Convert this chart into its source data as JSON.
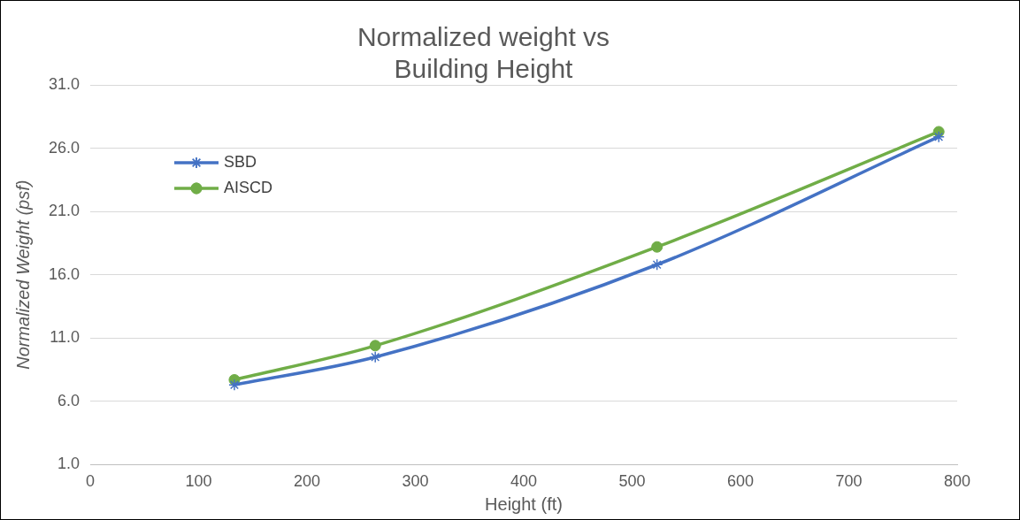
{
  "chart_data": {
    "type": "line",
    "title": "Normalized weight vs Building Height",
    "xlabel": "Height (ft)",
    "ylabel": "Normalized Weight (psf)",
    "x": [
      133,
      263,
      523,
      783
    ],
    "series": [
      {
        "name": "SBD",
        "color": "#4472c4",
        "marker": "cross",
        "values": [
          7.3,
          9.5,
          16.8,
          26.9
        ]
      },
      {
        "name": "AISCD",
        "color": "#70ad47",
        "marker": "circle",
        "values": [
          7.7,
          10.4,
          18.2,
          27.3
        ]
      }
    ],
    "xlim": [
      0,
      800
    ],
    "xticks": [
      0,
      100,
      200,
      300,
      400,
      500,
      600,
      700,
      800
    ],
    "ylim": [
      1,
      31
    ],
    "yticks": [
      {
        "value": 1,
        "label": "1.0"
      },
      {
        "value": 6,
        "label": "6.0"
      },
      {
        "value": 11,
        "label": "11.0"
      },
      {
        "value": 16,
        "label": "16.0"
      },
      {
        "value": 21,
        "label": "21.0"
      },
      {
        "value": 26,
        "label": "26.0"
      },
      {
        "value": 31,
        "label": "31.0"
      }
    ],
    "grid": "y",
    "legend": "top left"
  }
}
